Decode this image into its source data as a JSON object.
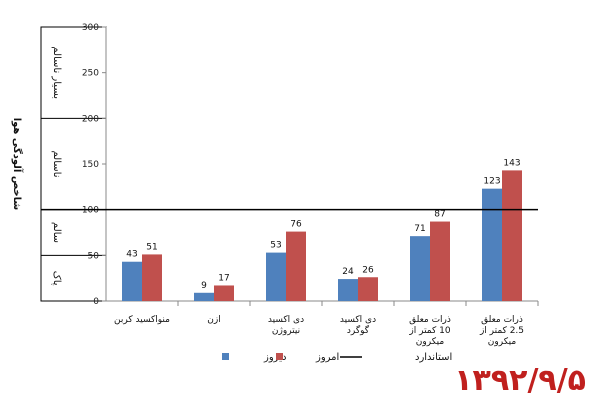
{
  "chart_data": {
    "type": "bar",
    "ylabel": "شاخص آلودگی هوا",
    "ylim": [
      0,
      300
    ],
    "yticks": [
      0,
      50,
      100,
      150,
      200,
      250,
      300
    ],
    "categories": [
      [
        "منواکسید کربن"
      ],
      [
        "ازن"
      ],
      [
        "دی اکسید",
        "نیتروژن"
      ],
      [
        "دی اکسید",
        "گوگرد"
      ],
      [
        "ذرات معلق",
        "10 کمتر از",
        "میکرون"
      ],
      [
        "ذرات معلق",
        "2.5 کمتر از",
        "میکرون"
      ]
    ],
    "series": [
      {
        "name": "دیروز",
        "color": "#4f81bd",
        "values": [
          43,
          9,
          53,
          24,
          71,
          123
        ]
      },
      {
        "name": "امروز",
        "color": "#c0504d",
        "values": [
          51,
          17,
          76,
          26,
          87,
          143
        ]
      }
    ],
    "standard": {
      "name": "استاندارد",
      "value": 100,
      "color": "#000000"
    },
    "bands": [
      {
        "label": "پاک",
        "from": 0,
        "to": 50
      },
      {
        "label": "سالم",
        "from": 50,
        "to": 100
      },
      {
        "label": "ناسالم",
        "from": 100,
        "to": 200
      },
      {
        "label": "بسیار ناسالم",
        "from": 200,
        "to": 300
      }
    ],
    "grid": false,
    "legend_position": "bottom"
  },
  "date_stamp": "۱۳۹۲/۹/۵"
}
